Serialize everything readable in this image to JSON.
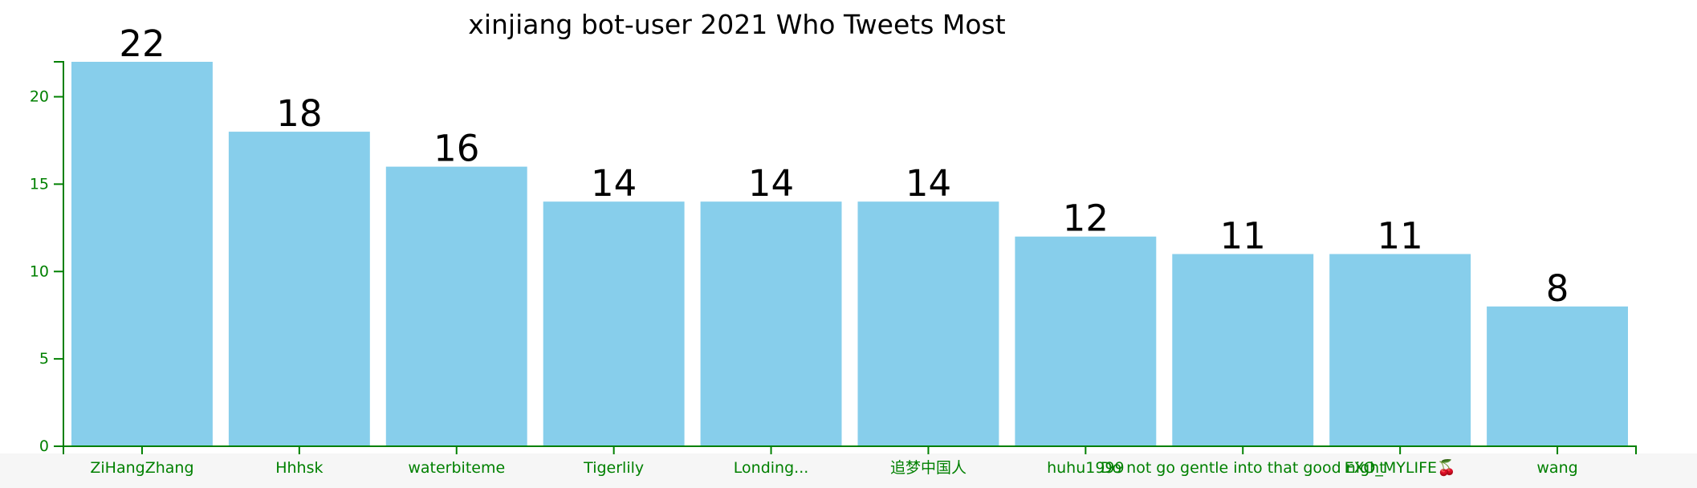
{
  "chart_data": {
    "type": "bar",
    "title": "xinjiang bot-user 2021 Who Tweets Most",
    "xlabel": "",
    "ylabel": "",
    "categories": [
      "ZiHangZhang",
      "Hhhsk",
      "waterbiteme",
      "Tigerlily",
      "Londing...",
      "追梦中国人",
      "huhu1999",
      "Do not go gentle into that good night",
      "EXO_MYLIFE🍒",
      "wang"
    ],
    "values": [
      22,
      18,
      16,
      14,
      14,
      14,
      12,
      11,
      11,
      8
    ],
    "ylim": [
      0,
      22
    ],
    "yticks": [
      0,
      5,
      10,
      15,
      20
    ],
    "grid": false,
    "legend": "none",
    "bar_color": "#87ceeb",
    "axis_color": "#008000"
  }
}
